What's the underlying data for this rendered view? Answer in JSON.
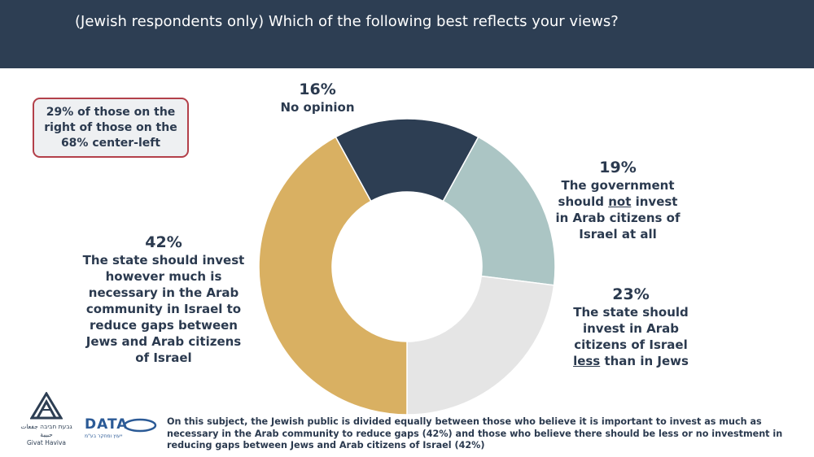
{
  "header": {
    "title": "(Jewish respondents only) Which of the following best reflects your views?"
  },
  "callout": {
    "text": "29% of those on the right of those on the 68% center-left"
  },
  "chart_data": {
    "type": "pie",
    "subtype": "donut",
    "slices": [
      {
        "label": "No opinion",
        "value": 16,
        "pct_label": "16%",
        "color": "#2d3e53"
      },
      {
        "label": "The government should not invest in Arab citizens of Israel at all",
        "value": 19,
        "pct_label": "19%",
        "color": "#abc5c4"
      },
      {
        "label": "The state should invest in Arab citizens of Israel less than in Jews",
        "value": 23,
        "pct_label": "23%",
        "color": "#e5e5e5"
      },
      {
        "label": "The state should invest however much is necessary in the Arab community in Israel to reduce gaps between Jews and Arab citizens of Israel",
        "value": 42,
        "pct_label": "42%",
        "color": "#d9b062"
      }
    ]
  },
  "labels": {
    "s16": {
      "pct": "16%",
      "text": "No opinion"
    },
    "s19": {
      "pct": "19%",
      "pre": "The government should ",
      "em": "not",
      "post": " invest in Arab citizens of Israel at all"
    },
    "s23": {
      "pct": "23%",
      "pre": "The state should invest in Arab citizens of Israel ",
      "em": "less",
      "post": " than in Jews"
    },
    "s42": {
      "pct": "42%",
      "text": "The state should invest however much is necessary in the Arab community in Israel to reduce gaps between Jews and Arab citizens of Israel"
    }
  },
  "footer": {
    "note": "On this subject, the Jewish public is divided equally between those who believe it is important to invest as much as necessary in the Arab community to reduce gaps (42%) and those who believe there should be less or no investment in reducing gaps between Jews and Arab citizens of Israel (42%)",
    "logo_givat_haviva_hebrew": "גבעת חביבה جفعات حبيبة",
    "logo_givat_haviva": "Givat Haviva",
    "logo_data": "DATA",
    "logo_data_sub": "ייעוץ ומחקר בע\"מ"
  }
}
